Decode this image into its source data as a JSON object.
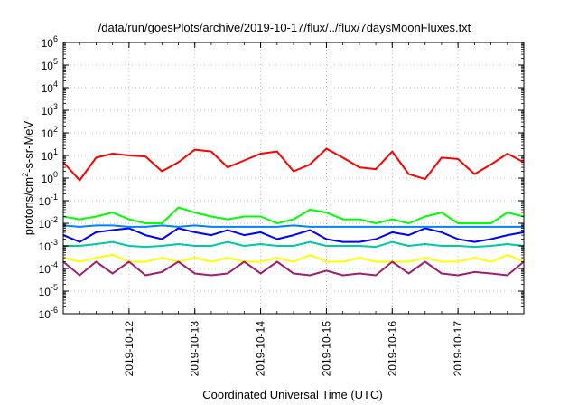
{
  "chart_data": {
    "type": "line",
    "title": "/data/run/goesPlots/archive/2019-10-17/flux/../flux/7daysMoonFluxes.txt",
    "xlabel": "Coordinated Universal Time (UTC)",
    "ylabel": "protons/cm2-s-sr-MeV",
    "y_scale": "log",
    "ylim": [
      1e-06,
      1000000.0
    ],
    "y_ticks": [
      {
        "value": 1e-06,
        "base": "10",
        "exp": "-6"
      },
      {
        "value": 1e-05,
        "base": "10",
        "exp": "-5"
      },
      {
        "value": 0.0001,
        "base": "10",
        "exp": "-4"
      },
      {
        "value": 0.001,
        "base": "10",
        "exp": "-3"
      },
      {
        "value": 0.01,
        "base": "10",
        "exp": "-2"
      },
      {
        "value": 0.1,
        "base": "10",
        "exp": "-1"
      },
      {
        "value": 1,
        "base": "10",
        "exp": "0"
      },
      {
        "value": 10.0,
        "base": "10",
        "exp": "1"
      },
      {
        "value": 100.0,
        "base": "10",
        "exp": "2"
      },
      {
        "value": 1000.0,
        "base": "10",
        "exp": "3"
      },
      {
        "value": 10000.0,
        "base": "10",
        "exp": "4"
      },
      {
        "value": 100000.0,
        "base": "10",
        "exp": "5"
      },
      {
        "value": 1000000.0,
        "base": "10",
        "exp": "6"
      }
    ],
    "xlim": [
      "2019-10-11 00:00",
      "2019-10-18 00:00"
    ],
    "x_ticks": [
      "2019-10-12",
      "2019-10-13",
      "2019-10-14",
      "2019-10-15",
      "2019-10-16",
      "2019-10-17"
    ],
    "grid": true,
    "legend": "none",
    "x_dates": [
      "2019-10-11",
      "2019-10-11 06:00",
      "2019-10-11 12:00",
      "2019-10-11 18:00",
      "2019-10-12",
      "2019-10-12 06:00",
      "2019-10-12 12:00",
      "2019-10-12 18:00",
      "2019-10-13",
      "2019-10-13 06:00",
      "2019-10-13 12:00",
      "2019-10-13 18:00",
      "2019-10-14",
      "2019-10-14 06:00",
      "2019-10-14 12:00",
      "2019-10-14 18:00",
      "2019-10-15",
      "2019-10-15 06:00",
      "2019-10-15 12:00",
      "2019-10-15 18:00",
      "2019-10-16",
      "2019-10-16 06:00",
      "2019-10-16 12:00",
      "2019-10-16 18:00",
      "2019-10-17",
      "2019-10-17 06:00",
      "2019-10-17 12:00",
      "2019-10-17 18:00",
      "2019-10-18"
    ],
    "series": [
      {
        "color": "#ff0000",
        "values": [
          5,
          0.8,
          8,
          12,
          10,
          9,
          2,
          5,
          18,
          15,
          3,
          6,
          12,
          15,
          2,
          4,
          20,
          8,
          3,
          2.5,
          15,
          1.5,
          0.9,
          8,
          7,
          1.5,
          4,
          12,
          5
        ]
      },
      {
        "color": "#00ff00",
        "values": [
          0.02,
          0.015,
          0.02,
          0.03,
          0.015,
          0.01,
          0.01,
          0.05,
          0.03,
          0.02,
          0.015,
          0.02,
          0.02,
          0.01,
          0.015,
          0.04,
          0.03,
          0.015,
          0.015,
          0.01,
          0.015,
          0.01,
          0.02,
          0.03,
          0.01,
          0.01,
          0.01,
          0.03,
          0.02
        ]
      },
      {
        "color": "#0000ff",
        "values": [
          0.003,
          0.0015,
          0.004,
          0.005,
          0.006,
          0.003,
          0.002,
          0.006,
          0.004,
          0.003,
          0.005,
          0.003,
          0.004,
          0.002,
          0.003,
          0.005,
          0.002,
          0.0015,
          0.0015,
          0.002,
          0.004,
          0.003,
          0.006,
          0.004,
          0.002,
          0.0015,
          0.002,
          0.003,
          0.004
        ]
      },
      {
        "color": "#0080ff",
        "values": [
          0.008,
          0.007,
          0.008,
          0.008,
          0.007,
          0.007,
          0.008,
          0.007,
          0.008,
          0.007,
          0.007,
          0.007,
          0.007,
          0.007,
          0.008,
          0.007,
          0.007,
          0.007,
          0.007,
          0.007,
          0.007,
          0.007,
          0.007,
          0.007,
          0.007,
          0.007,
          0.007,
          0.007,
          0.007
        ]
      },
      {
        "color": "#00c8a0",
        "values": [
          0.001,
          0.001,
          0.0012,
          0.0015,
          0.001,
          0.0009,
          0.001,
          0.0012,
          0.001,
          0.001,
          0.0015,
          0.001,
          0.0012,
          0.001,
          0.001,
          0.0015,
          0.001,
          0.001,
          0.001,
          0.0009,
          0.0015,
          0.001,
          0.0012,
          0.001,
          0.001,
          0.0009,
          0.001,
          0.0012,
          0.001
        ]
      },
      {
        "color": "#ffff00",
        "values": [
          0.0003,
          0.0002,
          0.0003,
          0.0004,
          0.0002,
          0.0002,
          0.0003,
          0.0002,
          0.0003,
          0.0002,
          0.0003,
          0.0002,
          0.0002,
          0.0003,
          0.0002,
          0.0004,
          0.0002,
          0.0002,
          0.0003,
          0.0002,
          0.0002,
          0.0002,
          0.0003,
          0.0002,
          0.0002,
          0.0003,
          0.0002,
          0.0004,
          0.0002
        ]
      },
      {
        "color": "#a0206e",
        "values": [
          0.0002,
          5e-05,
          0.0002,
          6e-05,
          0.0002,
          5e-05,
          7e-05,
          0.0002,
          6e-05,
          5e-05,
          6e-05,
          0.0002,
          6e-05,
          0.0002,
          6e-05,
          5e-05,
          8e-05,
          5e-05,
          6e-05,
          5e-05,
          0.0002,
          6e-05,
          0.0002,
          6e-05,
          5e-05,
          7e-05,
          6e-05,
          5e-05,
          0.0002
        ]
      }
    ]
  }
}
